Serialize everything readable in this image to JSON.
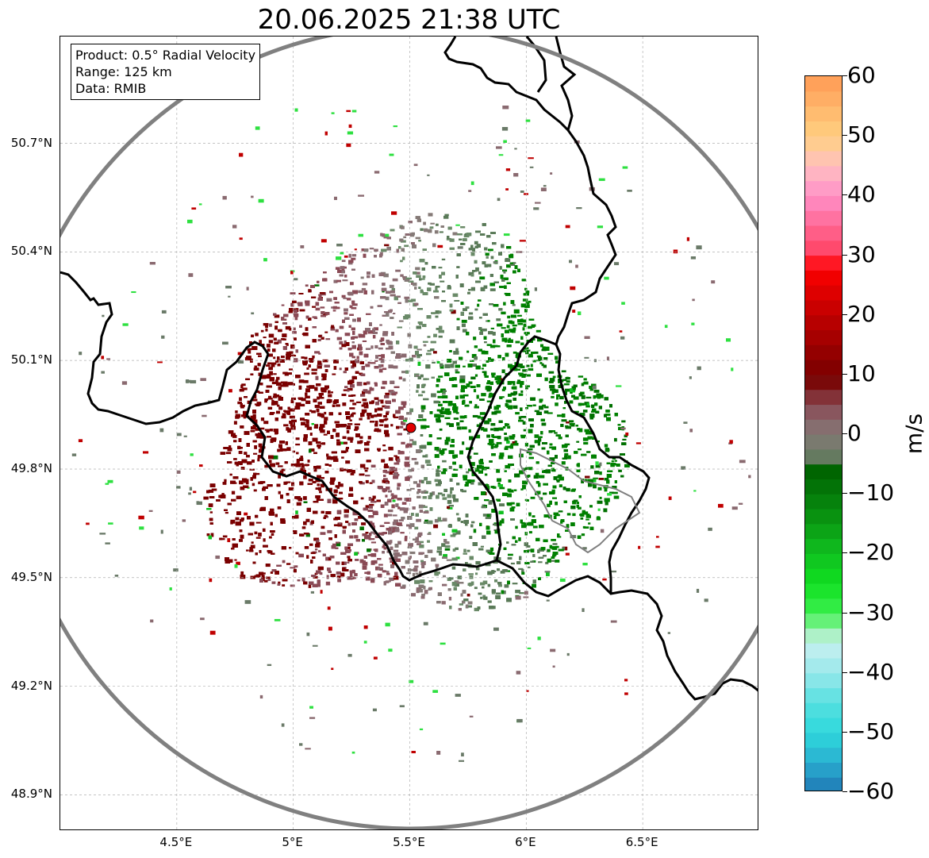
{
  "title": "20.06.2025 21:38 UTC",
  "info": {
    "product": "Product: 0.5° Radial Velocity",
    "range": "Range: 125 km",
    "data": "Data: RMIB"
  },
  "axes": {
    "lat_ticks": [
      "50.7°N",
      "50.4°N",
      "50.1°N",
      "49.8°N",
      "49.5°N",
      "49.2°N",
      "48.9°N"
    ],
    "lon_ticks": [
      "4.5°E",
      "5°E",
      "5.5°E",
      "6°E",
      "6.5°E"
    ]
  },
  "radar": {
    "site_lon": 5.505,
    "site_lat": 49.914,
    "range_km": 125,
    "site_marker_color": "#e00000",
    "range_ring_color": "#808080"
  },
  "colorbar": {
    "unit": "m/s",
    "ticks": [
      "60",
      "50",
      "40",
      "30",
      "20",
      "10",
      "0",
      "−10",
      "−20",
      "−30",
      "−40",
      "−50",
      "−60"
    ],
    "vmin": -60,
    "vmax": 60,
    "stops": [
      {
        "v": -60,
        "c": "#1f77b4"
      },
      {
        "v": -55,
        "c": "#2aaed0"
      },
      {
        "v": -50,
        "c": "#2ed8dc"
      },
      {
        "v": -45,
        "c": "#56e0e0"
      },
      {
        "v": -40,
        "c": "#98e8ea"
      },
      {
        "v": -35,
        "c": "#c8f0f0"
      },
      {
        "v": -33,
        "c": "#9ef2b0"
      },
      {
        "v": -30,
        "c": "#3cf050"
      },
      {
        "v": -25,
        "c": "#10e020"
      },
      {
        "v": -20,
        "c": "#10c020"
      },
      {
        "v": -15,
        "c": "#0a9a12"
      },
      {
        "v": -10,
        "c": "#047a0a"
      },
      {
        "v": -6,
        "c": "#006400"
      },
      {
        "v": -5,
        "c": "#5a7a58"
      },
      {
        "v": 0,
        "c": "#857a77"
      },
      {
        "v": 5,
        "c": "#8a4a55"
      },
      {
        "v": 8,
        "c": "#7a1010"
      },
      {
        "v": 10,
        "c": "#7a0000"
      },
      {
        "v": 20,
        "c": "#c00000"
      },
      {
        "v": 28,
        "c": "#ff0000"
      },
      {
        "v": 30,
        "c": "#ff4060"
      },
      {
        "v": 40,
        "c": "#ff90c8"
      },
      {
        "v": 45,
        "c": "#ffc0c0"
      },
      {
        "v": 50,
        "c": "#ffd080"
      },
      {
        "v": 60,
        "c": "#ff9a55"
      }
    ]
  },
  "colors": {
    "approaching": "#008000",
    "receding": "#7a0000",
    "near_zero": "#857a77",
    "border": "#000000",
    "grid": "#b0b0b0"
  }
}
